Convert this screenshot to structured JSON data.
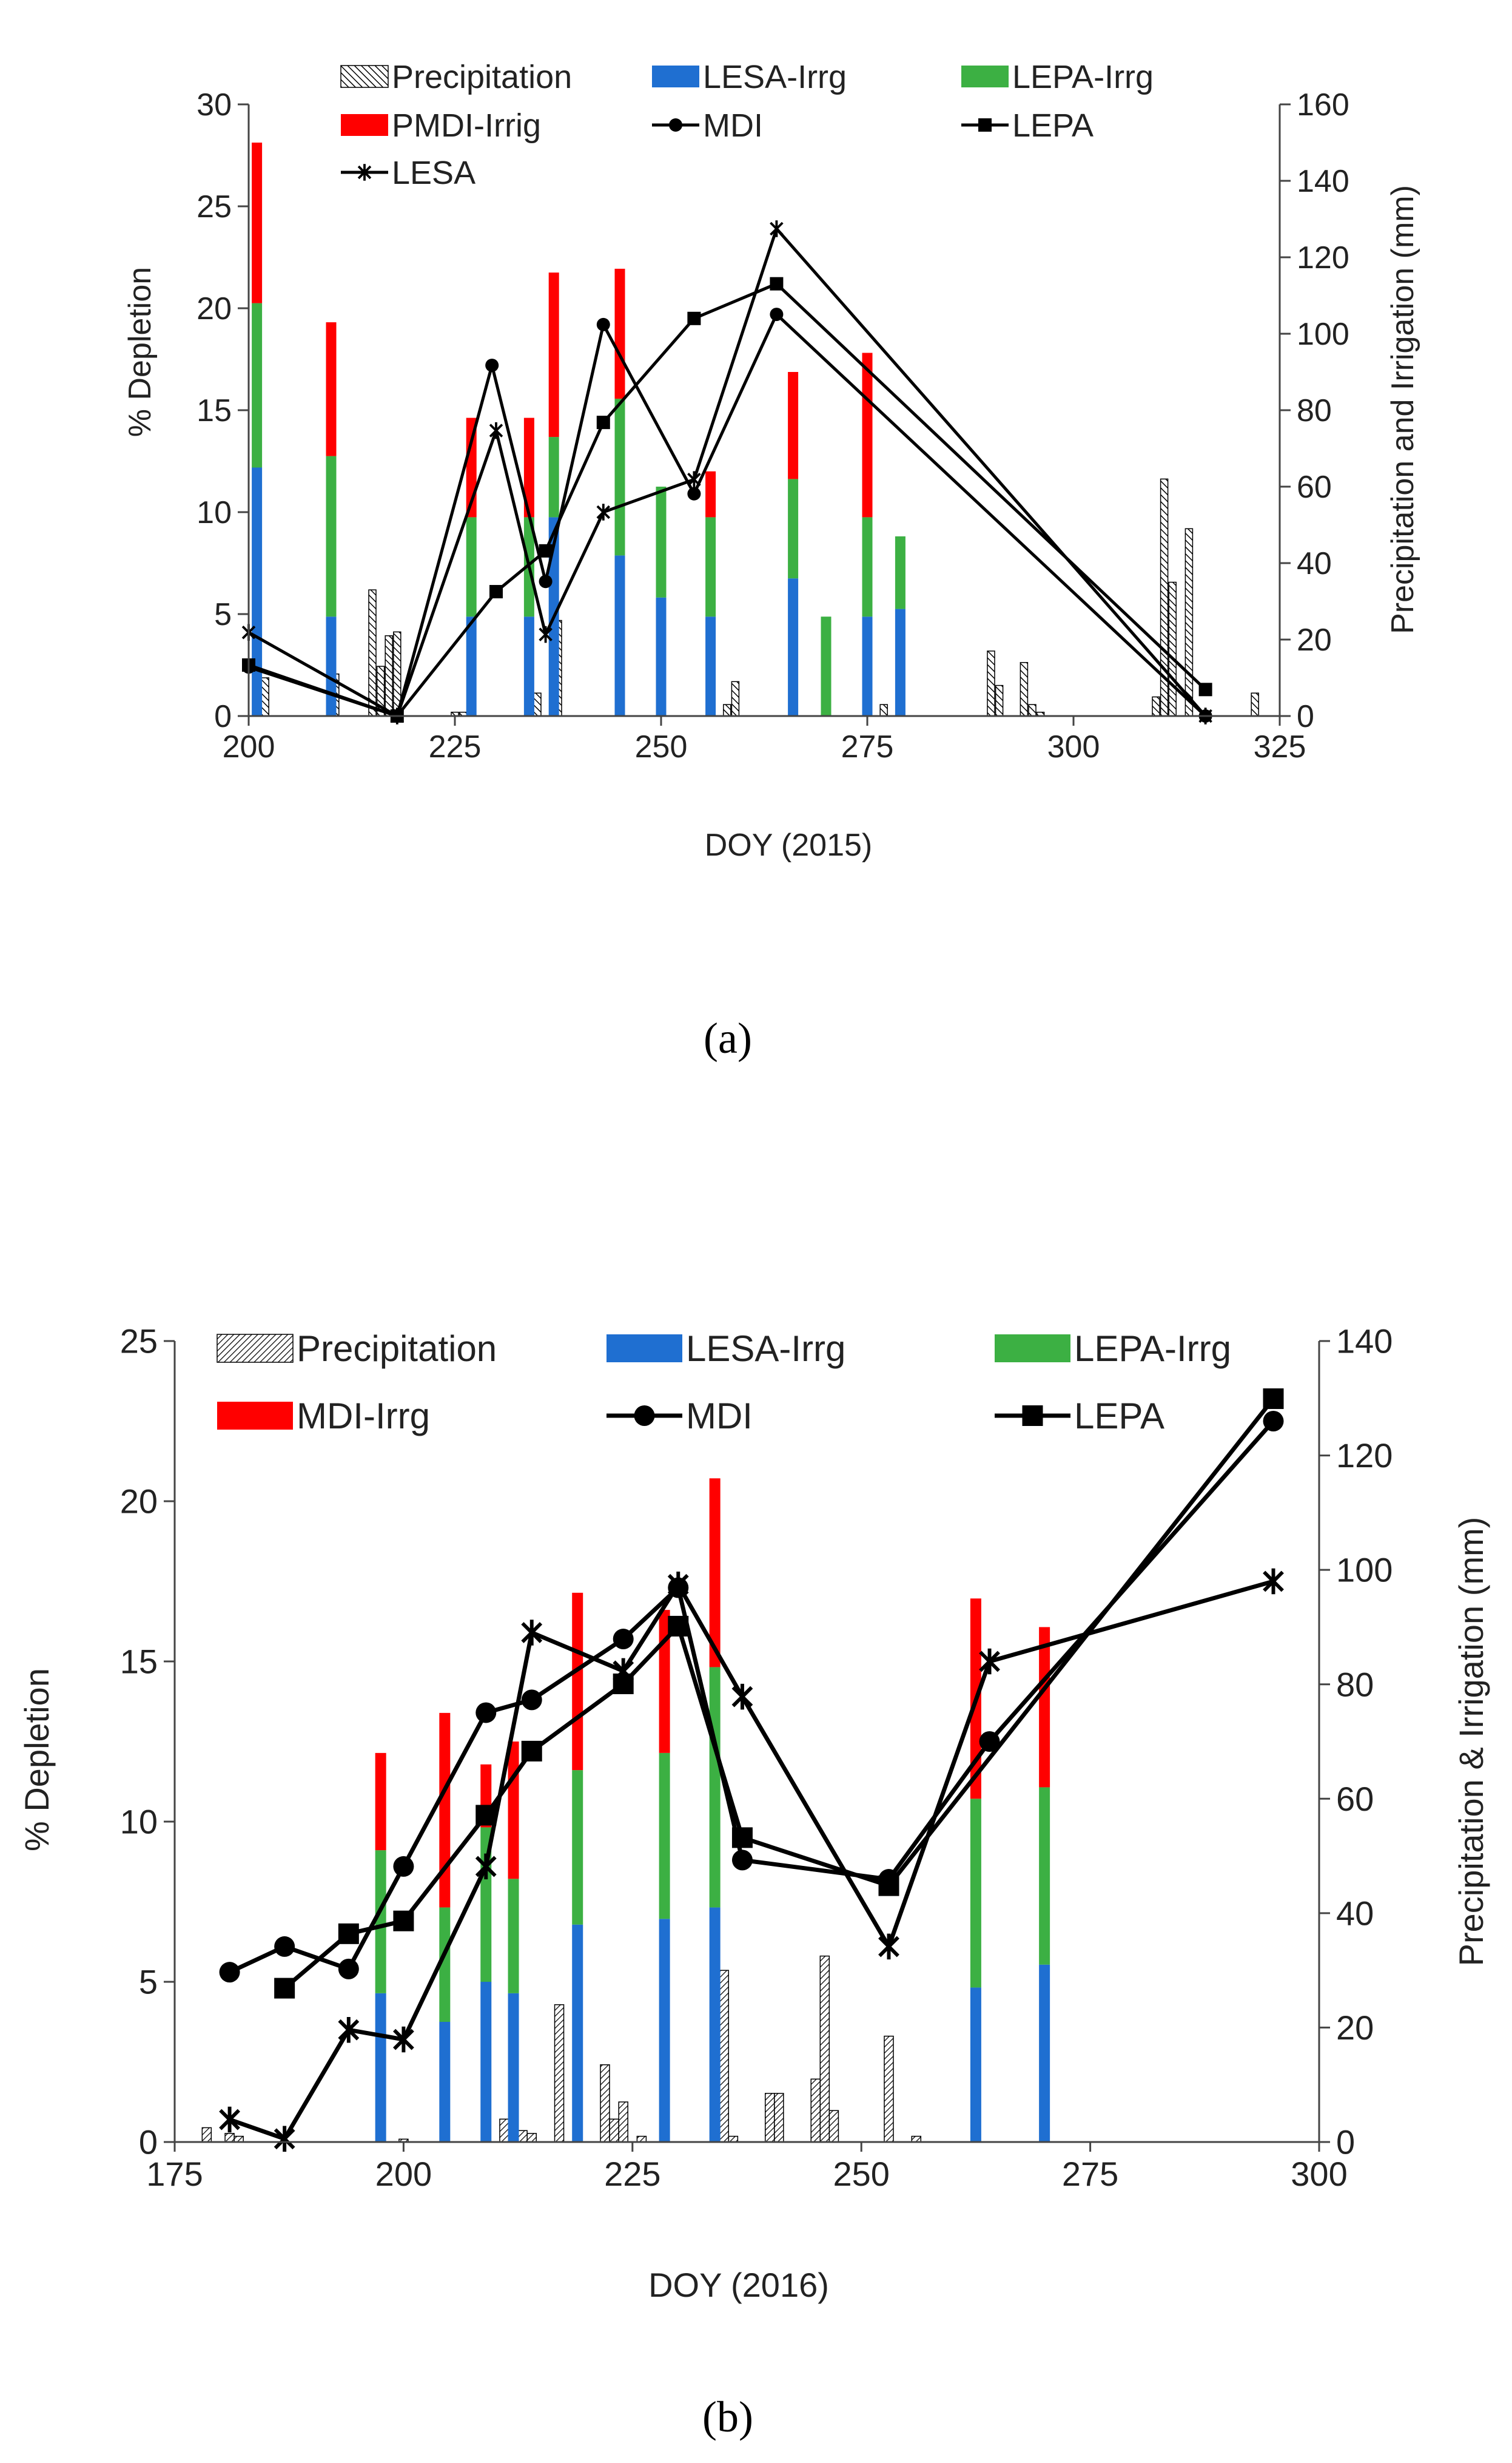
{
  "figure": {
    "panel_a_label": "(a)",
    "panel_b_label": "(b)"
  },
  "chart_data": [
    {
      "type": "bar",
      "panel": "a",
      "xlabel": "DOY (2015)",
      "ylabel": "% Depletion",
      "y2label": "Precipitation and Irrigation (mm)",
      "xlim": [
        200,
        325
      ],
      "xticks": [
        200,
        225,
        250,
        275,
        300,
        325
      ],
      "ylim": [
        0,
        30
      ],
      "yticks": [
        0,
        5,
        10,
        15,
        20,
        25,
        30
      ],
      "y2lim": [
        0,
        160
      ],
      "y2ticks": [
        0,
        20,
        40,
        60,
        80,
        100,
        120,
        140,
        160
      ],
      "legend": [
        {
          "label": "Precipitation",
          "kind": "hatch"
        },
        {
          "label": "LESA-Irrg",
          "kind": "bar",
          "color": "#1f6fd1"
        },
        {
          "label": "LEPA-Irrg",
          "kind": "bar",
          "color": "#3cb043"
        },
        {
          "label": "PMDI-Irrig",
          "kind": "bar",
          "color": "#ff0000"
        },
        {
          "label": "MDI",
          "kind": "line",
          "marker": "circle"
        },
        {
          "label": "LEPA",
          "kind": "line",
          "marker": "square"
        },
        {
          "label": "LESA",
          "kind": "line",
          "marker": "star"
        }
      ],
      "precipitation": [
        {
          "doy": 201,
          "mm": 30
        },
        {
          "doy": 202,
          "mm": 10
        },
        {
          "doy": 210.5,
          "mm": 11
        },
        {
          "doy": 215,
          "mm": 33
        },
        {
          "doy": 216,
          "mm": 13
        },
        {
          "doy": 217,
          "mm": 21
        },
        {
          "doy": 218,
          "mm": 22
        },
        {
          "doy": 225,
          "mm": 1
        },
        {
          "doy": 226,
          "mm": 1
        },
        {
          "doy": 227,
          "mm": 1
        },
        {
          "doy": 235,
          "mm": 6
        },
        {
          "doy": 237.5,
          "mm": 25
        },
        {
          "doy": 258,
          "mm": 3
        },
        {
          "doy": 259,
          "mm": 9
        },
        {
          "doy": 277,
          "mm": 3
        },
        {
          "doy": 279,
          "mm": 5
        },
        {
          "doy": 290,
          "mm": 17
        },
        {
          "doy": 291,
          "mm": 8
        },
        {
          "doy": 294,
          "mm": 14
        },
        {
          "doy": 295,
          "mm": 3
        },
        {
          "doy": 296,
          "mm": 1
        },
        {
          "doy": 310,
          "mm": 5
        },
        {
          "doy": 311,
          "mm": 62
        },
        {
          "doy": 312,
          "mm": 35
        },
        {
          "doy": 314,
          "mm": 49
        },
        {
          "doy": 322,
          "mm": 6
        }
      ],
      "irrigation": [
        {
          "doy": 201,
          "LESA": 65,
          "LEPA": 108,
          "MDI": 150
        },
        {
          "doy": 210,
          "LESA": 26,
          "LEPA": 68,
          "MDI": 103
        },
        {
          "doy": 227,
          "LESA": 26,
          "LEPA": 52,
          "MDI": 78
        },
        {
          "doy": 234,
          "LESA": 26,
          "LEPA": 52,
          "MDI": 78
        },
        {
          "doy": 237,
          "LESA": 52,
          "LEPA": 73,
          "MDI": 116
        },
        {
          "doy": 245,
          "LESA": 42,
          "LEPA": 83,
          "MDI": 117
        },
        {
          "doy": 250,
          "LESA": 31,
          "LEPA": 60,
          "MDI": null
        },
        {
          "doy": 256,
          "LESA": 26,
          "LEPA": 52,
          "MDI": 64
        },
        {
          "doy": 266,
          "LESA": 36,
          "LEPA": 62,
          "MDI": 90
        },
        {
          "doy": 270,
          "LESA": null,
          "LEPA": 26,
          "MDI": null
        },
        {
          "doy": 275,
          "LESA": 26,
          "LEPA": 52,
          "MDI": 95
        },
        {
          "doy": 279,
          "LESA": 28,
          "LEPA": 47,
          "MDI": null
        }
      ],
      "series": [
        {
          "name": "MDI",
          "marker": "circle",
          "x": [
            200,
            218,
            229.5,
            236,
            243,
            254,
            264,
            316
          ],
          "y": [
            2.4,
            0,
            17.2,
            6.6,
            19.2,
            10.9,
            19.7,
            0
          ]
        },
        {
          "name": "LEPA",
          "marker": "square",
          "x": [
            200,
            218,
            230,
            236,
            243,
            254,
            264,
            316
          ],
          "y": [
            2.5,
            0,
            6.1,
            8.1,
            14.4,
            19.5,
            21.2,
            1.3
          ]
        },
        {
          "name": "LESA",
          "marker": "star",
          "x": [
            200,
            218,
            230,
            236,
            243,
            254,
            264,
            316
          ],
          "y": [
            4.1,
            0,
            14.0,
            4.0,
            10.0,
            11.6,
            23.9,
            0
          ]
        }
      ]
    },
    {
      "type": "bar",
      "panel": "b",
      "xlabel": "DOY (2016)",
      "ylabel": "% Depletion",
      "y2label": "Precipitation & Irrigation (mm)",
      "xlim": [
        175,
        300
      ],
      "xticks": [
        175,
        200,
        225,
        250,
        275,
        300
      ],
      "ylim": [
        0,
        25
      ],
      "yticks": [
        0,
        5,
        10,
        15,
        20,
        25
      ],
      "y2lim": [
        0,
        140
      ],
      "y2ticks": [
        0,
        20,
        40,
        60,
        80,
        100,
        120,
        140
      ],
      "legend": [
        {
          "label": "Precipitation",
          "kind": "hatch"
        },
        {
          "label": "LESA-Irrg",
          "kind": "bar",
          "color": "#1f6fd1"
        },
        {
          "label": "LEPA-Irrg",
          "kind": "bar",
          "color": "#3cb043"
        },
        {
          "label": "MDI-Irrg",
          "kind": "bar",
          "color": "#ff0000"
        },
        {
          "label": "MDI",
          "kind": "line",
          "marker": "circle"
        },
        {
          "label": "LEPA",
          "kind": "line",
          "marker": "square"
        }
      ],
      "precipitation": [
        {
          "doy": 178.5,
          "mm": 2.5
        },
        {
          "doy": 181,
          "mm": 1.5
        },
        {
          "doy": 182,
          "mm": 1
        },
        {
          "doy": 200,
          "mm": 0.5
        },
        {
          "doy": 211,
          "mm": 4
        },
        {
          "doy": 213,
          "mm": 2
        },
        {
          "doy": 214,
          "mm": 1.5
        },
        {
          "doy": 217,
          "mm": 24
        },
        {
          "doy": 222,
          "mm": 13.5
        },
        {
          "doy": 223,
          "mm": 4
        },
        {
          "doy": 224,
          "mm": 7
        },
        {
          "doy": 226,
          "mm": 1
        },
        {
          "doy": 235,
          "mm": 30
        },
        {
          "doy": 236,
          "mm": 1
        },
        {
          "doy": 240,
          "mm": 8.5
        },
        {
          "doy": 241,
          "mm": 8.5
        },
        {
          "doy": 245,
          "mm": 11
        },
        {
          "doy": 246,
          "mm": 32.5
        },
        {
          "doy": 247,
          "mm": 5.5
        },
        {
          "doy": 253,
          "mm": 18.5
        },
        {
          "doy": 256,
          "mm": 1
        }
      ],
      "irrigation": [
        {
          "doy": 197.5,
          "LESA": 26,
          "LEPA": 51,
          "MDI": 68
        },
        {
          "doy": 204.5,
          "LESA": 21,
          "LEPA": 41,
          "MDI": 75
        },
        {
          "doy": 209,
          "LESA": 28,
          "LEPA": 55,
          "MDI": 66
        },
        {
          "doy": 212,
          "LESA": 26,
          "LEPA": 46,
          "MDI": 70
        },
        {
          "doy": 219,
          "LESA": 38,
          "LEPA": 65,
          "MDI": 96
        },
        {
          "doy": 228.5,
          "LESA": 39,
          "LEPA": 68,
          "MDI": 93
        },
        {
          "doy": 234,
          "LESA": 41,
          "LEPA": 83,
          "MDI": 116
        },
        {
          "doy": 262.5,
          "LESA": 27,
          "LEPA": 60,
          "MDI": 95
        },
        {
          "doy": 270,
          "LESA": 31,
          "LEPA": 62,
          "MDI": 90
        }
      ],
      "series": [
        {
          "name": "MDI",
          "marker": "circle",
          "x": [
            181,
            187,
            194,
            200,
            209,
            214,
            224,
            230,
            237,
            253,
            264,
            295
          ],
          "y": [
            5.3,
            6.1,
            5.4,
            8.6,
            13.4,
            13.8,
            15.7,
            17.3,
            8.8,
            8.2,
            12.5,
            22.5
          ]
        },
        {
          "name": "LEPA",
          "marker": "square",
          "x": [
            187,
            194,
            200,
            209,
            214,
            224,
            230,
            237,
            253,
            295
          ],
          "y": [
            4.8,
            6.5,
            6.9,
            10.2,
            12.2,
            14.3,
            16.1,
            9.5,
            8.0,
            23.2
          ]
        },
        {
          "name": "LESA",
          "marker": "star",
          "x": [
            181,
            187,
            194,
            200,
            209,
            214,
            224,
            230,
            237,
            253,
            264,
            295
          ],
          "y": [
            0.7,
            0.1,
            3.5,
            3.2,
            8.6,
            15.9,
            14.7,
            17.4,
            13.9,
            6.1,
            15.0,
            17.5
          ]
        }
      ]
    }
  ]
}
